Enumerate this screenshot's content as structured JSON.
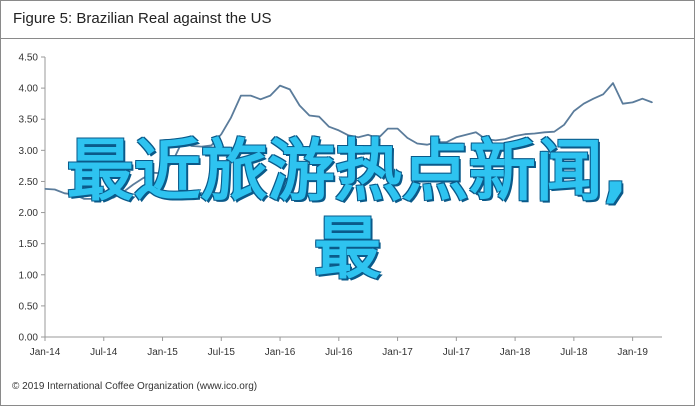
{
  "figure": {
    "title": "Figure 5: Brazilian Real against the US",
    "copyright": "© 2019 International Coffee Organization (www.ico.org)"
  },
  "overlay": {
    "line1": "最近旅游热点新闻,",
    "line2": "最"
  },
  "colors": {
    "line": "#5b7c9b",
    "axis": "#999999",
    "overlay_text": "#2ec3f0",
    "overlay_outline": "#0a5a8a"
  },
  "chart_data": {
    "type": "line",
    "title": "",
    "xlabel": "",
    "ylabel": "",
    "ylim": [
      0.0,
      4.5
    ],
    "grid": false,
    "y_ticks": [
      "0.00",
      "0.50",
      "1.00",
      "1.50",
      "2.00",
      "2.50",
      "3.00",
      "3.50",
      "4.00",
      "4.50"
    ],
    "x_ticks": [
      "Jan-14",
      "Jul-14",
      "Jan-15",
      "Jul-15",
      "Jan-16",
      "Jul-16",
      "Jan-17",
      "Jul-17",
      "Jan-18",
      "Jul-18",
      "Jan-19"
    ],
    "x_months": [
      0,
      6,
      12,
      18,
      24,
      30,
      36,
      42,
      48,
      54,
      60
    ],
    "x_range_months": [
      0,
      63
    ],
    "series": [
      {
        "name": "",
        "months": [
          0,
          1,
          2,
          3,
          4,
          5,
          6,
          7,
          8,
          9,
          10,
          11,
          12,
          13,
          14,
          15,
          16,
          17,
          18,
          19,
          20,
          21,
          22,
          23,
          24,
          25,
          26,
          27,
          28,
          29,
          30,
          31,
          32,
          33,
          34,
          35,
          36,
          37,
          38,
          39,
          40,
          41,
          42,
          43,
          44,
          45,
          46,
          47,
          48,
          49,
          50,
          51,
          52,
          53,
          54,
          55,
          56,
          57,
          58,
          59,
          60,
          61,
          62
        ],
        "values": [
          2.38,
          2.37,
          2.31,
          2.29,
          2.22,
          2.22,
          2.22,
          2.24,
          2.33,
          2.45,
          2.55,
          2.64,
          2.63,
          2.81,
          3.14,
          3.07,
          3.06,
          3.08,
          3.26,
          3.53,
          3.88,
          3.88,
          3.82,
          3.88,
          4.04,
          3.98,
          3.72,
          3.56,
          3.54,
          3.38,
          3.32,
          3.24,
          3.21,
          3.25,
          3.19,
          3.35,
          3.35,
          3.2,
          3.11,
          3.09,
          3.13,
          3.13,
          3.21,
          3.25,
          3.29,
          3.18,
          3.16,
          3.18,
          3.23,
          3.26,
          3.27,
          3.29,
          3.3,
          3.41,
          3.63,
          3.75,
          3.83,
          3.9,
          4.08,
          3.75,
          3.77,
          3.83,
          3.77
        ]
      }
    ]
  }
}
